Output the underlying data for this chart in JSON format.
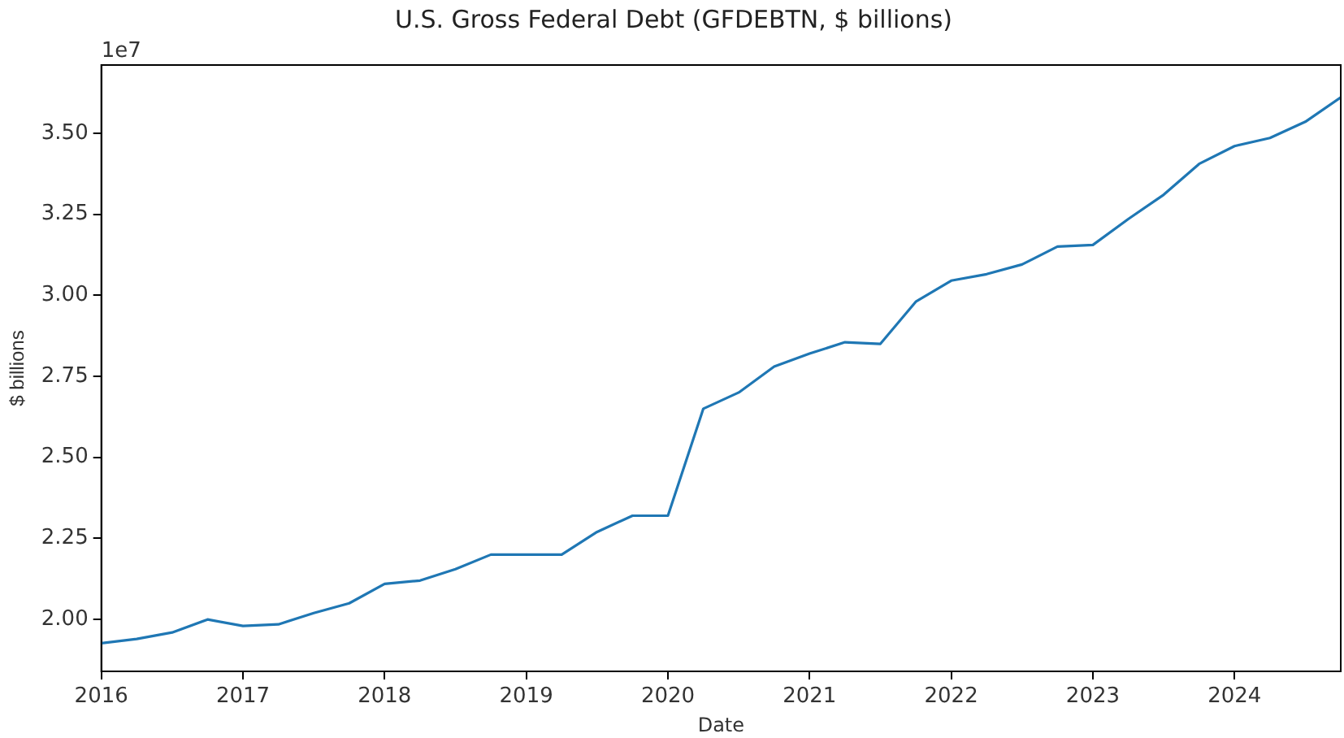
{
  "chart_data": {
    "type": "line",
    "title": "U.S. Gross Federal Debt (GFDEBTN, $ billions)",
    "xlabel": "Date",
    "ylabel": "$ billions",
    "annotations": [
      "1e7"
    ],
    "x": [
      "2016-01",
      "2016-04",
      "2016-07",
      "2016-10",
      "2017-01",
      "2017-04",
      "2017-07",
      "2017-10",
      "2018-01",
      "2018-04",
      "2018-07",
      "2018-10",
      "2019-01",
      "2019-04",
      "2019-07",
      "2019-10",
      "2020-01",
      "2020-04",
      "2020-07",
      "2020-10",
      "2021-01",
      "2021-04",
      "2021-07",
      "2021-10",
      "2022-01",
      "2022-04",
      "2022-07",
      "2022-10",
      "2023-01",
      "2023-04",
      "2023-07",
      "2023-10",
      "2024-01",
      "2024-04",
      "2024-07",
      "2024-10"
    ],
    "series": [
      {
        "color": "#1f77b4",
        "values": [
          1.927,
          1.94,
          1.96,
          2.0,
          1.98,
          1.985,
          2.02,
          2.05,
          2.11,
          2.12,
          2.155,
          2.2,
          2.2,
          2.2,
          2.27,
          2.32,
          2.32,
          2.65,
          2.7,
          2.78,
          2.82,
          2.855,
          2.85,
          2.98,
          3.045,
          3.065,
          3.095,
          3.15,
          3.155,
          3.235,
          3.31,
          3.405,
          3.46,
          3.485,
          3.535,
          3.61
        ]
      }
    ],
    "xlim": [
      "2016-01",
      "2024-10"
    ],
    "xticks": [
      "2016",
      "2017",
      "2018",
      "2019",
      "2020",
      "2021",
      "2022",
      "2023",
      "2024"
    ],
    "ylim": [
      1.84,
      3.71
    ],
    "yticks": [
      {
        "value": 2,
        "label": "2.00"
      },
      {
        "value": 2.25,
        "label": "2.25"
      },
      {
        "value": 2.5,
        "label": "2.50"
      },
      {
        "value": 2.75,
        "label": "2.75"
      },
      {
        "value": 3,
        "label": "3.00"
      },
      {
        "value": 3.25,
        "label": "3.25"
      },
      {
        "value": 3.5,
        "label": "3.50"
      }
    ],
    "grid": false,
    "legend": false,
    "marker": "none",
    "line_style": "solid"
  }
}
